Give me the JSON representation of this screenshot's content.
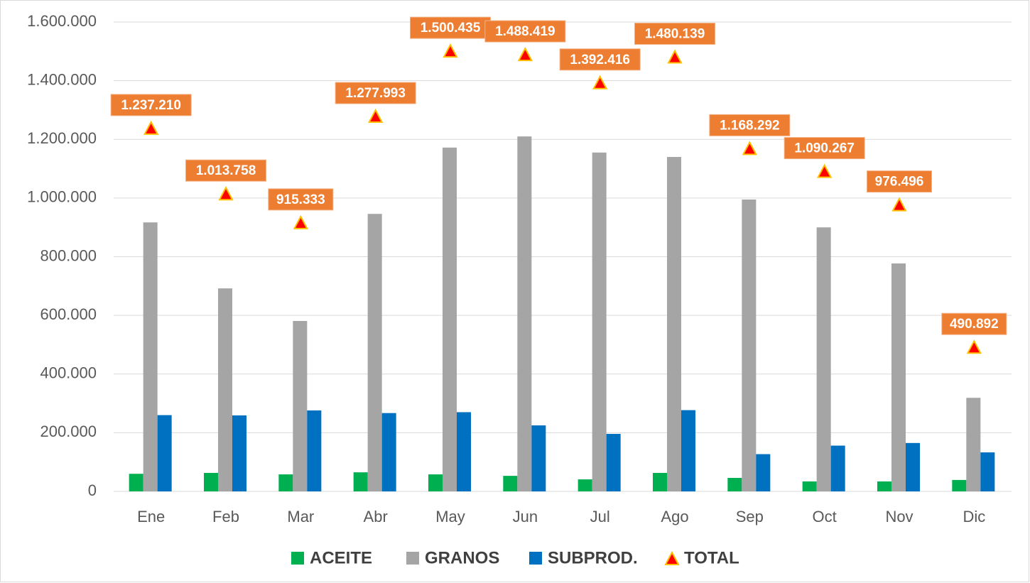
{
  "chart_data": {
    "type": "bar",
    "categories": [
      "Ene",
      "Feb",
      "Mar",
      "Abr",
      "May",
      "Jun",
      "Jul",
      "Ago",
      "Sep",
      "Oct",
      "Nov",
      "Dic"
    ],
    "series": [
      {
        "name": "ACEITE",
        "color": "#00b050",
        "values": [
          60000,
          63000,
          58000,
          65000,
          58000,
          53000,
          41000,
          63000,
          46000,
          34000,
          34000,
          39000
        ]
      },
      {
        "name": "GRANOS",
        "color": "#a5a5a5",
        "values": [
          917000,
          692000,
          581000,
          946000,
          1172000,
          1210000,
          1155000,
          1140000,
          995000,
          900000,
          777000,
          319000
        ]
      },
      {
        "name": "SUBPROD.",
        "color": "#0070c0",
        "values": [
          260000,
          259000,
          276000,
          267000,
          270000,
          225000,
          196000,
          277000,
          127000,
          156000,
          165000,
          133000
        ]
      },
      {
        "name": "TOTAL",
        "type": "marker",
        "color": "#ff0000",
        "values": [
          1237210,
          1013758,
          915333,
          1277993,
          1500435,
          1488419,
          1392416,
          1480139,
          1168292,
          1090267,
          976496,
          490892
        ],
        "value_labels": [
          "1.237.210",
          "1.013.758",
          "915.333",
          "1.277.993",
          "1.500.435",
          "1.488.419",
          "1.392.416",
          "1.480.139",
          "1.168.292",
          "1.090.267",
          "976.496",
          "490.892"
        ]
      }
    ],
    "ylim": [
      0,
      1600000
    ],
    "yticks": [
      0,
      {
        "value": 200000,
        "label": "200.000"
      },
      {
        "value": 400000,
        "label": "400.000"
      },
      {
        "value": 600000,
        "label": "600.000"
      },
      {
        "value": 800000,
        "label": "800.000"
      },
      {
        "value": 1000000,
        "label": "1.000.000"
      },
      {
        "value": 1200000,
        "label": "1.200.000"
      },
      {
        "value": 1400000,
        "label": "1.400.000"
      },
      {
        "value": 1600000,
        "label": "1.600.000"
      }
    ],
    "grid": true,
    "legend": "bottom"
  }
}
